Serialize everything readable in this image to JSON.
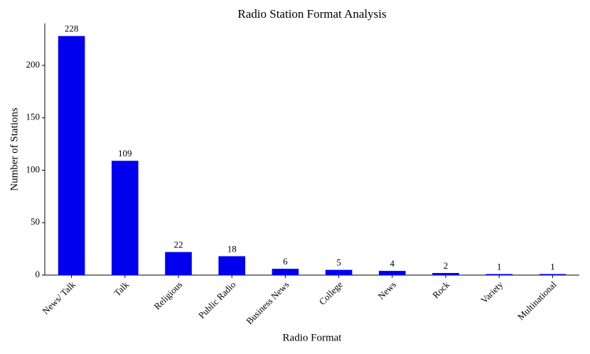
{
  "chart_data": {
    "type": "bar",
    "title": "Radio Station Format Analysis",
    "x_label": "Radio Format",
    "y_label": "Number of Stations",
    "categories": [
      "News/ Talk",
      "Talk",
      "Religious",
      "Public Radio",
      "Business News",
      "College",
      "News",
      "Rock",
      "Variety",
      "Multinational"
    ],
    "values": [
      228,
      109,
      22,
      18,
      6,
      5,
      4,
      2,
      1,
      1
    ],
    "color": "#0000ee",
    "ylim": [
      0,
      240
    ],
    "yticks": [
      0,
      50,
      100,
      150,
      200
    ],
    "grid": false
  }
}
